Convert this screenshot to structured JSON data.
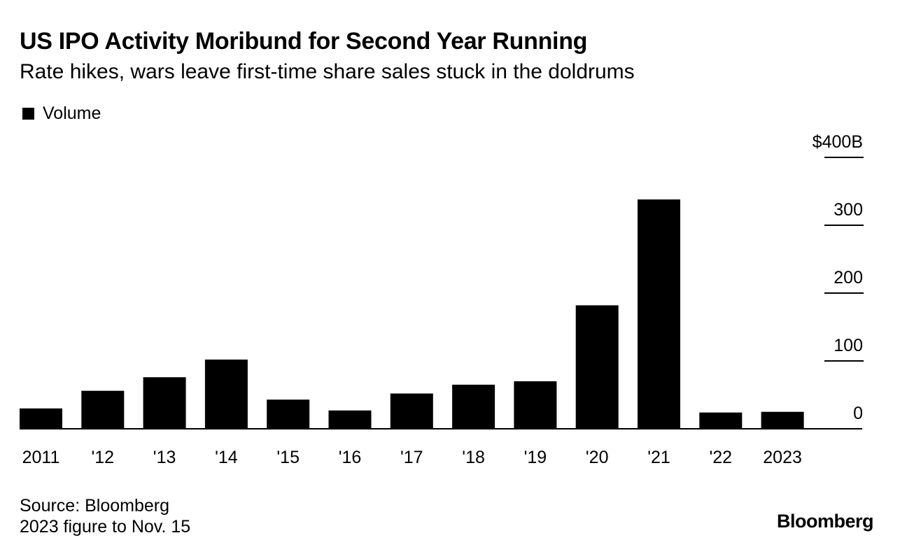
{
  "chart_data": {
    "type": "bar",
    "title": "US IPO Activity Moribund for Second Year Running",
    "subtitle": "Rate hikes, wars leave first-time share sales stuck in the doldrums",
    "legend": [
      {
        "name": "Volume",
        "color": "#000000"
      }
    ],
    "categories": [
      "2011",
      "'12",
      "'13",
      "'14",
      "'15",
      "'16",
      "'17",
      "'18",
      "'19",
      "'20",
      "'21",
      "'22",
      "2023"
    ],
    "series": [
      {
        "name": "Volume",
        "values": [
          30,
          56,
          76,
          102,
          43,
          27,
          52,
          65,
          70,
          182,
          338,
          24,
          25
        ]
      }
    ],
    "ylim": [
      0,
      400
    ],
    "yticks": [
      0,
      100,
      200,
      300,
      400
    ],
    "ytick_labels": [
      "0",
      "100",
      "200",
      "300",
      "$400B"
    ],
    "xlabel": "",
    "ylabel": "",
    "y_axis_position": "right",
    "grid": false
  },
  "footer": {
    "source": "Source: Bloomberg",
    "note": "2023 figure to Nov. 15",
    "brand": "Bloomberg"
  }
}
